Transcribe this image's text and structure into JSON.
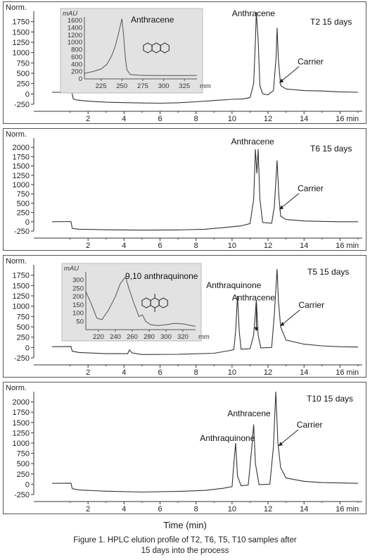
{
  "figure": {
    "x_axis_title": "Time (min)",
    "caption": "Figure 1. HPLC elution profile of T2, T6, T5, T10 samples after 15 days into the process"
  },
  "chart_data": [
    {
      "type": "line",
      "title": "T2 15 days",
      "ylabel": "Norm.",
      "x_unit_label": "min",
      "xlim": [
        0,
        17
      ],
      "ylim": [
        -250,
        2000
      ],
      "xticks": [
        2,
        4,
        6,
        8,
        10,
        12,
        14,
        16
      ],
      "yticks": [
        -250,
        0,
        250,
        500,
        750,
        1000,
        1250,
        1500,
        1750
      ],
      "annotations": [
        {
          "text": "Anthracene",
          "x": 11.35,
          "y": 1880,
          "arrow": false
        },
        {
          "text": "Carrier",
          "x": 12.55,
          "y": 440,
          "arrow": true
        }
      ],
      "series": [
        {
          "points": [
            [
              0,
              40
            ],
            [
              1.1,
              40
            ],
            [
              1.18,
              -120
            ],
            [
              1.4,
              -150
            ],
            [
              2,
              -175
            ],
            [
              3,
              -200
            ],
            [
              4,
              -210
            ],
            [
              5,
              -220
            ],
            [
              6,
              -225
            ],
            [
              7,
              -215
            ],
            [
              8,
              -190
            ],
            [
              9,
              -160
            ],
            [
              10,
              -130
            ],
            [
              10.6,
              -120
            ],
            [
              11.0,
              -90
            ],
            [
              11.2,
              250
            ],
            [
              11.3,
              1300
            ],
            [
              11.35,
              1980
            ],
            [
              11.45,
              1300
            ],
            [
              11.55,
              200
            ],
            [
              11.7,
              0
            ],
            [
              12.0,
              -20
            ],
            [
              12.3,
              80
            ],
            [
              12.45,
              900
            ],
            [
              12.5,
              1600
            ],
            [
              12.58,
              800
            ],
            [
              12.7,
              200
            ],
            [
              13,
              120
            ],
            [
              14,
              80
            ],
            [
              15,
              70
            ],
            [
              16,
              50
            ],
            [
              17,
              40
            ]
          ]
        }
      ],
      "inset": {
        "title": "Anthracene",
        "ylabel": "mAU",
        "x_unit_label": "mm",
        "xlim": [
          205,
          340
        ],
        "ylim": [
          0,
          1700
        ],
        "xticks": [
          225,
          250,
          275,
          300,
          325
        ],
        "yticks": [
          0,
          200,
          400,
          600,
          800,
          1000,
          1200,
          1400,
          1600
        ],
        "series": [
          {
            "points": [
              [
                205,
                150
              ],
              [
                215,
                200
              ],
              [
                225,
                270
              ],
              [
                232,
                400
              ],
              [
                238,
                650
              ],
              [
                242,
                900
              ],
              [
                246,
                1250
              ],
              [
                250,
                1650
              ],
              [
                252,
                1200
              ],
              [
                254,
                600
              ],
              [
                256,
                250
              ],
              [
                260,
                120
              ],
              [
                270,
                100
              ],
              [
                280,
                95
              ],
              [
                300,
                90
              ],
              [
                320,
                90
              ],
              [
                340,
                95
              ]
            ]
          }
        ]
      }
    },
    {
      "type": "line",
      "title": "T6 15 days",
      "ylabel": "Norm.",
      "x_unit_label": "min",
      "xlim": [
        0,
        17
      ],
      "ylim": [
        -250,
        2250
      ],
      "xticks": [
        2,
        4,
        6,
        8,
        10,
        12,
        14,
        16
      ],
      "yticks": [
        -250,
        0,
        250,
        500,
        750,
        1000,
        1250,
        1500,
        1750,
        2000
      ],
      "annotations": [
        {
          "text": "Anthracene",
          "x": 11.3,
          "y": 2080,
          "arrow": false
        },
        {
          "text": "Carrier",
          "x": 12.55,
          "y": 520,
          "arrow": true
        }
      ],
      "series": [
        {
          "points": [
            [
              0,
              0
            ],
            [
              1.05,
              5
            ],
            [
              1.12,
              -180
            ],
            [
              1.5,
              -200
            ],
            [
              3,
              -215
            ],
            [
              5,
              -225
            ],
            [
              7,
              -220
            ],
            [
              8.5,
              -200
            ],
            [
              9.5,
              -160
            ],
            [
              10.5,
              -110
            ],
            [
              11.0,
              -50
            ],
            [
              11.2,
              600
            ],
            [
              11.3,
              1950
            ],
            [
              11.38,
              1300
            ],
            [
              11.45,
              1950
            ],
            [
              11.55,
              600
            ],
            [
              11.7,
              -20
            ],
            [
              12.2,
              -40
            ],
            [
              12.35,
              400
            ],
            [
              12.5,
              1650
            ],
            [
              12.6,
              700
            ],
            [
              12.7,
              150
            ],
            [
              13,
              60
            ],
            [
              14,
              20
            ],
            [
              15,
              10
            ],
            [
              16,
              0
            ],
            [
              17,
              0
            ]
          ]
        }
      ]
    },
    {
      "type": "line",
      "title": "T5 15 days",
      "ylabel": "Norm.",
      "x_unit_label": "min",
      "xlim": [
        0,
        17
      ],
      "ylim": [
        -250,
        2000
      ],
      "xticks": [
        2,
        4,
        6,
        8,
        10,
        12,
        14,
        16
      ],
      "yticks": [
        -250,
        0,
        250,
        500,
        750,
        1000,
        1250,
        1500,
        1750
      ],
      "annotations": [
        {
          "text": "Anthraquinone",
          "x": 10.25,
          "y": 1440,
          "arrow": false
        },
        {
          "text": "Anthracene",
          "x": 11.35,
          "y": 1140,
          "arrow": true
        },
        {
          "text": "Carrier",
          "x": 12.6,
          "y": 690,
          "arrow": true
        }
      ],
      "series": [
        {
          "points": [
            [
              0,
              20
            ],
            [
              1.05,
              25
            ],
            [
              1.12,
              -90
            ],
            [
              1.5,
              -120
            ],
            [
              3,
              -150
            ],
            [
              4.2,
              -150
            ],
            [
              4.3,
              -60
            ],
            [
              4.45,
              -130
            ],
            [
              5,
              -170
            ],
            [
              7,
              -165
            ],
            [
              9,
              -140
            ],
            [
              9.8,
              -80
            ],
            [
              10.1,
              -50
            ],
            [
              10.2,
              400
            ],
            [
              10.3,
              1250
            ],
            [
              10.4,
              400
            ],
            [
              10.5,
              -40
            ],
            [
              11.0,
              -30
            ],
            [
              11.2,
              300
            ],
            [
              11.35,
              1150
            ],
            [
              11.45,
              300
            ],
            [
              11.6,
              -10
            ],
            [
              12.2,
              0
            ],
            [
              12.35,
              800
            ],
            [
              12.5,
              1900
            ],
            [
              12.58,
              1100
            ],
            [
              12.7,
              500
            ],
            [
              13,
              180
            ],
            [
              14,
              80
            ],
            [
              15,
              40
            ],
            [
              16,
              20
            ],
            [
              17,
              10
            ]
          ]
        }
      ],
      "inset": {
        "title": "9,10 anthraquinone",
        "ylabel": "mAU",
        "x_unit_label": "mm",
        "xlim": [
          205,
          335
        ],
        "ylim": [
          0,
          350
        ],
        "xticks": [
          220,
          240,
          260,
          280,
          300,
          320
        ],
        "yticks": [
          50,
          100,
          150,
          200,
          250,
          300
        ],
        "series": [
          {
            "points": [
              [
                205,
                230
              ],
              [
                212,
                150
              ],
              [
                218,
                70
              ],
              [
                224,
                60
              ],
              [
                232,
                120
              ],
              [
                240,
                200
              ],
              [
                246,
                280
              ],
              [
                252,
                320
              ],
              [
                256,
                250
              ],
              [
                262,
                160
              ],
              [
                268,
                80
              ],
              [
                272,
                90
              ],
              [
                276,
                50
              ],
              [
                282,
                30
              ],
              [
                290,
                25
              ],
              [
                300,
                30
              ],
              [
                310,
                38
              ],
              [
                320,
                35
              ],
              [
                330,
                25
              ],
              [
                335,
                20
              ]
            ]
          }
        ]
      }
    },
    {
      "type": "line",
      "title": "T10 15 days",
      "ylabel": "Norm.",
      "x_unit_label": "min",
      "xlim": [
        0,
        17
      ],
      "ylim": [
        -250,
        2250
      ],
      "xticks": [
        2,
        4,
        6,
        8,
        10,
        12,
        14,
        16
      ],
      "yticks": [
        -250,
        0,
        250,
        500,
        750,
        1000,
        1250,
        1500,
        1750,
        2000
      ],
      "annotations": [
        {
          "text": "Anthracene",
          "x": 11.1,
          "y": 1650,
          "arrow": false
        },
        {
          "text": "Anthraquinone",
          "x": 9.9,
          "y": 1050,
          "arrow": false
        },
        {
          "text": "Carrier",
          "x": 12.5,
          "y": 1100,
          "arrow": true
        }
      ],
      "series": [
        {
          "points": [
            [
              0,
              20
            ],
            [
              1.05,
              25
            ],
            [
              1.12,
              -110
            ],
            [
              1.5,
              -140
            ],
            [
              3,
              -170
            ],
            [
              5,
              -190
            ],
            [
              7,
              -175
            ],
            [
              8.5,
              -150
            ],
            [
              9.5,
              -100
            ],
            [
              10.0,
              -60
            ],
            [
              10.1,
              500
            ],
            [
              10.2,
              1000
            ],
            [
              10.3,
              200
            ],
            [
              10.5,
              -40
            ],
            [
              10.9,
              -20
            ],
            [
              11.1,
              900
            ],
            [
              11.2,
              1450
            ],
            [
              11.3,
              500
            ],
            [
              11.5,
              -10
            ],
            [
              12.1,
              0
            ],
            [
              12.3,
              900
            ],
            [
              12.43,
              2250
            ],
            [
              12.55,
              1000
            ],
            [
              12.7,
              400
            ],
            [
              13,
              150
            ],
            [
              14,
              70
            ],
            [
              15,
              40
            ],
            [
              16,
              30
            ],
            [
              17,
              20
            ]
          ]
        }
      ]
    }
  ]
}
